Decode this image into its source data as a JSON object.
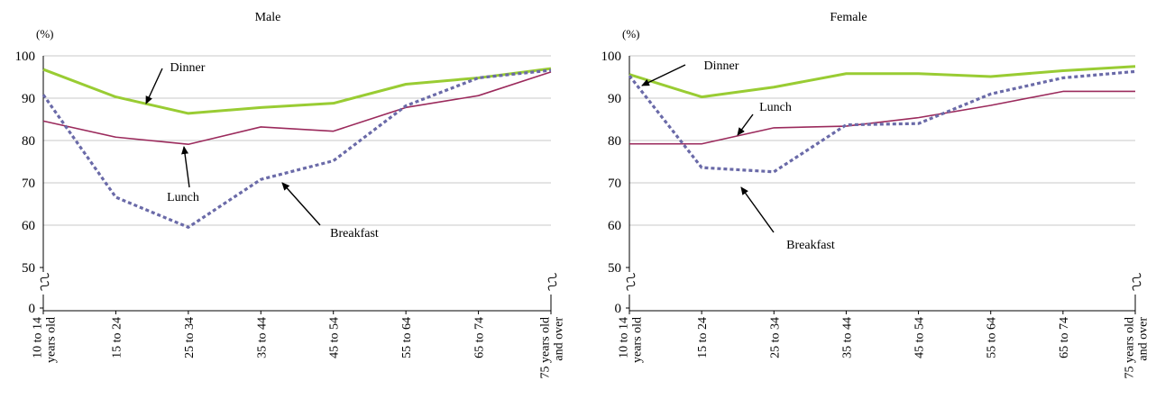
{
  "chart_data": [
    {
      "type": "line",
      "title": "Male",
      "unit_label": "(%)",
      "categories": [
        "10 to 14\nyears old",
        "15 to 24",
        "25 to 34",
        "35 to 44",
        "45 to 54",
        "55 to 64",
        "65 to 74",
        "75 years old\nand over"
      ],
      "yticks": [
        0,
        50,
        60,
        70,
        80,
        90,
        100
      ],
      "ylim": [
        50,
        100
      ],
      "axis_break": true,
      "grid": true,
      "series": [
        {
          "name": "Dinner",
          "color": "#99cc33",
          "dash": "solid",
          "values": [
            96.8,
            90.3,
            86.4,
            87.8,
            88.8,
            93.3,
            94.8,
            97.0
          ]
        },
        {
          "name": "Lunch",
          "color": "#9b2a5c",
          "dash": "solid",
          "values": [
            84.6,
            80.8,
            79.1,
            83.2,
            82.2,
            87.8,
            90.6,
            96.2
          ]
        },
        {
          "name": "Breakfast",
          "color": "#6a6aa8",
          "dash": "dotted",
          "values": [
            90.8,
            66.6,
            59.5,
            70.8,
            75.2,
            88.2,
            94.8,
            96.6
          ]
        }
      ]
    },
    {
      "type": "line",
      "title": "Female",
      "unit_label": "(%)",
      "categories": [
        "10 to 14\nyears old",
        "15 to 24",
        "25 to 34",
        "35 to 44",
        "45 to 54",
        "55 to 64",
        "65 to 74",
        "75 years old\nand over"
      ],
      "yticks": [
        0,
        50,
        60,
        70,
        80,
        90,
        100
      ],
      "ylim": [
        50,
        100
      ],
      "axis_break": true,
      "grid": true,
      "series": [
        {
          "name": "Dinner",
          "color": "#99cc33",
          "dash": "solid",
          "values": [
            95.6,
            90.3,
            92.6,
            95.8,
            95.8,
            95.1,
            96.5,
            97.5
          ]
        },
        {
          "name": "Lunch",
          "color": "#9b2a5c",
          "dash": "solid",
          "values": [
            79.2,
            79.2,
            83.0,
            83.4,
            85.4,
            88.3,
            91.6,
            91.6
          ]
        },
        {
          "name": "Breakfast",
          "color": "#6a6aa8",
          "dash": "dotted",
          "values": [
            95.3,
            73.6,
            72.6,
            83.7,
            84.0,
            91.0,
            94.8,
            96.3
          ]
        }
      ]
    }
  ]
}
